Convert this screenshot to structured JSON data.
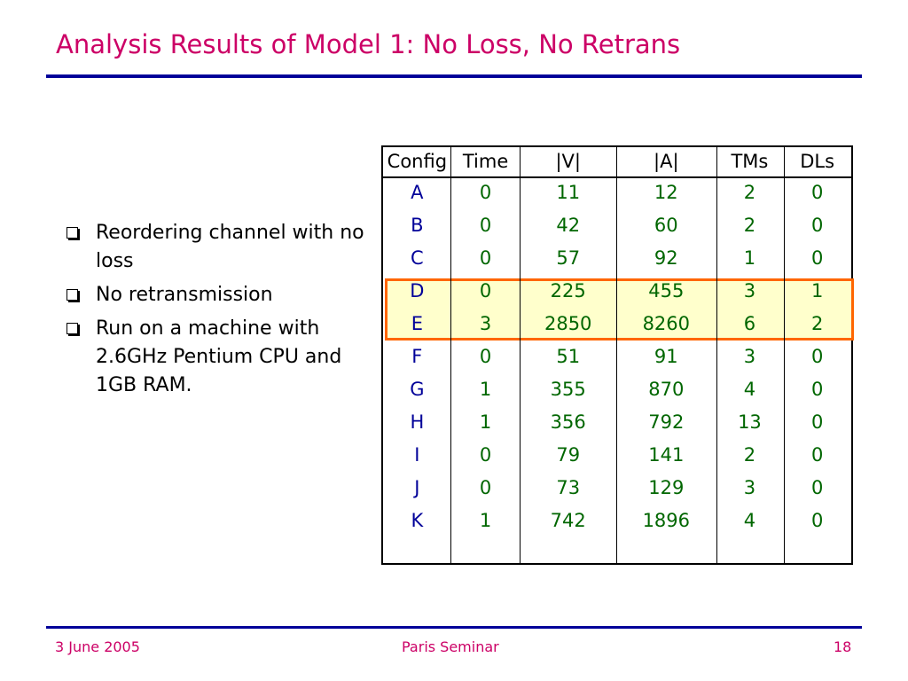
{
  "slide": {
    "title": "Analysis Results of Model 1: No Loss, No Retrans",
    "bullets": [
      "Reordering channel with no loss",
      "No retransmission",
      "Run on a machine with 2.6GHz Pentium CPU and 1GB RAM."
    ]
  },
  "table": {
    "headers": [
      "Config",
      "Time",
      "|V|",
      "|A|",
      "TMs",
      "DLs"
    ],
    "rows": [
      [
        "A",
        "0",
        "11",
        "12",
        "2",
        "0"
      ],
      [
        "B",
        "0",
        "42",
        "60",
        "2",
        "0"
      ],
      [
        "C",
        "0",
        "57",
        "92",
        "1",
        "0"
      ],
      [
        "D",
        "0",
        "225",
        "455",
        "3",
        "1"
      ],
      [
        "E",
        "3",
        "2850",
        "8260",
        "6",
        "2"
      ],
      [
        "F",
        "0",
        "51",
        "91",
        "3",
        "0"
      ],
      [
        "G",
        "1",
        "355",
        "870",
        "4",
        "0"
      ],
      [
        "H",
        "1",
        "356",
        "792",
        "13",
        "0"
      ],
      [
        "I",
        "0",
        "79",
        "141",
        "2",
        "0"
      ],
      [
        "J",
        "0",
        "73",
        "129",
        "3",
        "0"
      ],
      [
        "K",
        "1",
        "742",
        "1896",
        "4",
        "0"
      ]
    ],
    "highlighted_rows": [
      "D",
      "E"
    ],
    "highlight_fill": "#ffffcc",
    "highlight_border": "#ff6600"
  },
  "footer": {
    "date": "3 June 2005",
    "event": "Paris Seminar",
    "page": "18"
  },
  "colors": {
    "title": "#cc0066",
    "rule": "#000099",
    "config_text": "#000099",
    "value_text": "#006600"
  }
}
